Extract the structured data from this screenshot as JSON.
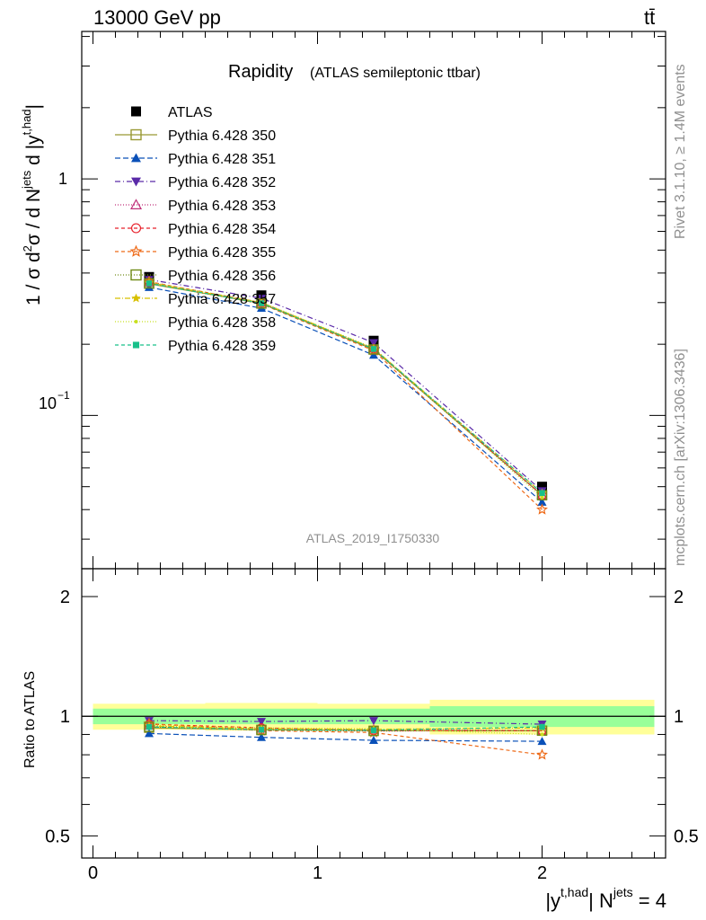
{
  "header": {
    "left": "13000 GeV pp",
    "right": "tt̄"
  },
  "side_labels": {
    "rivet": "Rivet 3.1.10, ≥ 1.4M events",
    "mcplots": "mcplots.cern.ch [arXiv:1306.3436]"
  },
  "colors": {
    "band_inner": "#99ff99",
    "band_outer": "#ffff99"
  },
  "chart_data": [
    {
      "type": "line",
      "panel": "main",
      "title": "Rapidity",
      "subtitle": "(ATLAS semileptonic ttbar)",
      "watermark": "ATLAS_2019_I1750330",
      "ylabel_text": "1 / σ d²σ / d N^jets d |y^t,had|",
      "yscale": "log",
      "ylim": [
        0.0225,
        4.2
      ],
      "y_tick_labels": {
        "one": "1",
        "tenth_base": "10",
        "tenth_exp": "−1"
      },
      "xlim": [
        -0.05,
        2.55
      ],
      "x": [
        0.25,
        0.75,
        1.25,
        2.0
      ],
      "bins": [
        [
          0,
          0.5
        ],
        [
          0.5,
          1.0
        ],
        [
          1.0,
          1.5
        ],
        [
          1.5,
          2.5
        ]
      ],
      "series": [
        {
          "name": "ATLAS",
          "color": "#000000",
          "marker": "square-filled",
          "dash": "none",
          "values": [
            0.385,
            0.322,
            0.207,
            0.05
          ]
        },
        {
          "name": "Pythia 6.428 350",
          "color": "#999933",
          "marker": "square-open",
          "dash": "solid",
          "values": [
            0.36,
            0.298,
            0.19,
            0.046
          ]
        },
        {
          "name": "Pythia 6.428 351",
          "color": "#0a50b8",
          "marker": "triangle-up-filled",
          "dash": "6,3",
          "values": [
            0.348,
            0.284,
            0.18,
            0.043
          ]
        },
        {
          "name": "Pythia 6.428 352",
          "color": "#5a2aa8",
          "marker": "triangle-down-filled",
          "dash": "6,3,1,3",
          "values": [
            0.375,
            0.313,
            0.203,
            0.048
          ]
        },
        {
          "name": "Pythia 6.428 353",
          "color": "#c0307a",
          "marker": "triangle-up-open",
          "dash": "1,2",
          "values": [
            0.365,
            0.3,
            0.192,
            0.046
          ]
        },
        {
          "name": "Pythia 6.428 354",
          "color": "#e8202a",
          "marker": "circle-open",
          "dash": "4,3",
          "values": [
            0.367,
            0.3,
            0.191,
            0.046
          ]
        },
        {
          "name": "Pythia 6.428 355",
          "color": "#ee6a18",
          "marker": "star-open",
          "dash": "4,3",
          "values": [
            0.368,
            0.296,
            0.188,
            0.04
          ]
        },
        {
          "name": "Pythia 6.428 356",
          "color": "#6f8a16",
          "marker": "square-open",
          "dash": "1,2",
          "values": [
            0.362,
            0.297,
            0.19,
            0.046
          ]
        },
        {
          "name": "Pythia 6.428 357",
          "color": "#d8c000",
          "marker": "star-small",
          "dash": "6,2,1,2",
          "values": [
            0.364,
            0.3,
            0.192,
            0.047
          ]
        },
        {
          "name": "Pythia 6.428 358",
          "color": "#c8e020",
          "marker": "dot",
          "dash": "1,2",
          "values": [
            0.366,
            0.301,
            0.193,
            0.045
          ]
        },
        {
          "name": "Pythia 6.428 359",
          "color": "#18c08a",
          "marker": "square-small",
          "dash": "4,3",
          "values": [
            0.362,
            0.298,
            0.191,
            0.047
          ]
        }
      ]
    },
    {
      "type": "line",
      "panel": "ratio",
      "ylabel": "Ratio to ATLAS",
      "xlabel_text": "|y^t,had| N^jets = 4",
      "yscale": "log",
      "ylim": [
        0.44,
        2.35
      ],
      "y_ticks": [
        0.5,
        1,
        2
      ],
      "y_tick_labels": [
        "0.5",
        "1",
        "2"
      ],
      "x_ticks": [
        0,
        1,
        2
      ],
      "x_tick_labels": [
        "0",
        "1",
        "2"
      ],
      "xlim": [
        -0.05,
        2.55
      ],
      "x": [
        0.25,
        0.75,
        1.25,
        2.0
      ],
      "band_bins": [
        [
          0,
          0.5
        ],
        [
          0.5,
          1.0
        ],
        [
          1.0,
          1.5
        ],
        [
          1.5,
          2.5
        ]
      ],
      "band_inner": [
        [
          0.955,
          1.045
        ],
        [
          0.955,
          1.045
        ],
        [
          0.955,
          1.045
        ],
        [
          0.94,
          1.06
        ]
      ],
      "band_outer": [
        [
          0.925,
          1.075
        ],
        [
          0.92,
          1.08
        ],
        [
          0.92,
          1.075
        ],
        [
          0.9,
          1.1
        ]
      ],
      "series": [
        {
          "name": "Pythia 6.428 350",
          "values": [
            0.935,
            0.925,
            0.92,
            0.92
          ]
        },
        {
          "name": "Pythia 6.428 351",
          "values": [
            0.905,
            0.885,
            0.87,
            0.865
          ]
        },
        {
          "name": "Pythia 6.428 352",
          "values": [
            0.975,
            0.97,
            0.975,
            0.955
          ]
        },
        {
          "name": "Pythia 6.428 353",
          "values": [
            0.948,
            0.932,
            0.925,
            0.92
          ]
        },
        {
          "name": "Pythia 6.428 354",
          "values": [
            0.955,
            0.935,
            0.92,
            0.92
          ]
        },
        {
          "name": "Pythia 6.428 355",
          "values": [
            0.958,
            0.92,
            0.91,
            0.8
          ]
        },
        {
          "name": "Pythia 6.428 356",
          "values": [
            0.94,
            0.923,
            0.918,
            0.92
          ]
        },
        {
          "name": "Pythia 6.428 357",
          "values": [
            0.945,
            0.93,
            0.927,
            0.935
          ]
        },
        {
          "name": "Pythia 6.428 358",
          "values": [
            0.95,
            0.935,
            0.93,
            0.9
          ]
        },
        {
          "name": "Pythia 6.428 359",
          "values": [
            0.94,
            0.925,
            0.922,
            0.94
          ]
        }
      ]
    }
  ]
}
